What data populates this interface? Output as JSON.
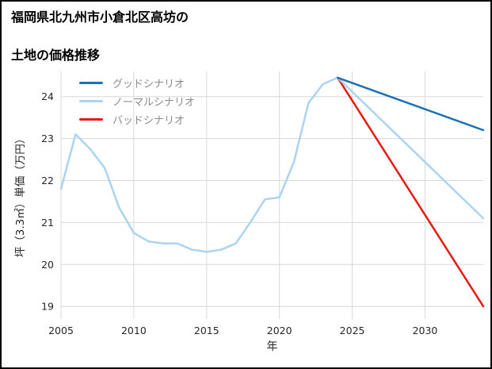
{
  "title_lines": [
    "福岡県北九州市小倉北区高坊の",
    "土地の価格推移"
  ],
  "chart_data": {
    "type": "line",
    "title": "福岡県北九州市小倉北区高坊の 土地の価格推移",
    "xlabel": "年",
    "ylabel": "坪（3.3㎡）単価（万円）",
    "xlim": [
      2005,
      2034
    ],
    "ylim": [
      18.7,
      24.6
    ],
    "xticks": [
      2005,
      2010,
      2015,
      2020,
      2025,
      2030
    ],
    "yticks": [
      19,
      20,
      21,
      22,
      23,
      24
    ],
    "grid": true,
    "grid_color": "#d8d8d8",
    "legend_position": "upper left",
    "series": [
      {
        "name": "グッドシナリオ",
        "color": "#1b6fb5",
        "x": [
          2024,
          2034
        ],
        "y": [
          24.45,
          23.2
        ]
      },
      {
        "name": "ノーマルシナリオ",
        "color": "#abd4f0",
        "x": [
          2005,
          2006,
          2007,
          2008,
          2009,
          2010,
          2011,
          2012,
          2013,
          2014,
          2015,
          2016,
          2017,
          2018,
          2019,
          2020,
          2021,
          2022,
          2023,
          2024,
          2034
        ],
        "y": [
          21.8,
          23.1,
          22.75,
          22.3,
          21.35,
          20.75,
          20.55,
          20.5,
          20.5,
          20.35,
          20.3,
          20.35,
          20.5,
          21.0,
          21.55,
          21.6,
          22.45,
          23.85,
          24.3,
          24.45,
          21.1
        ]
      },
      {
        "name": "バッドシナリオ",
        "color": "#e8190f",
        "x": [
          2024,
          2034
        ],
        "y": [
          24.45,
          19.0
        ]
      }
    ]
  }
}
